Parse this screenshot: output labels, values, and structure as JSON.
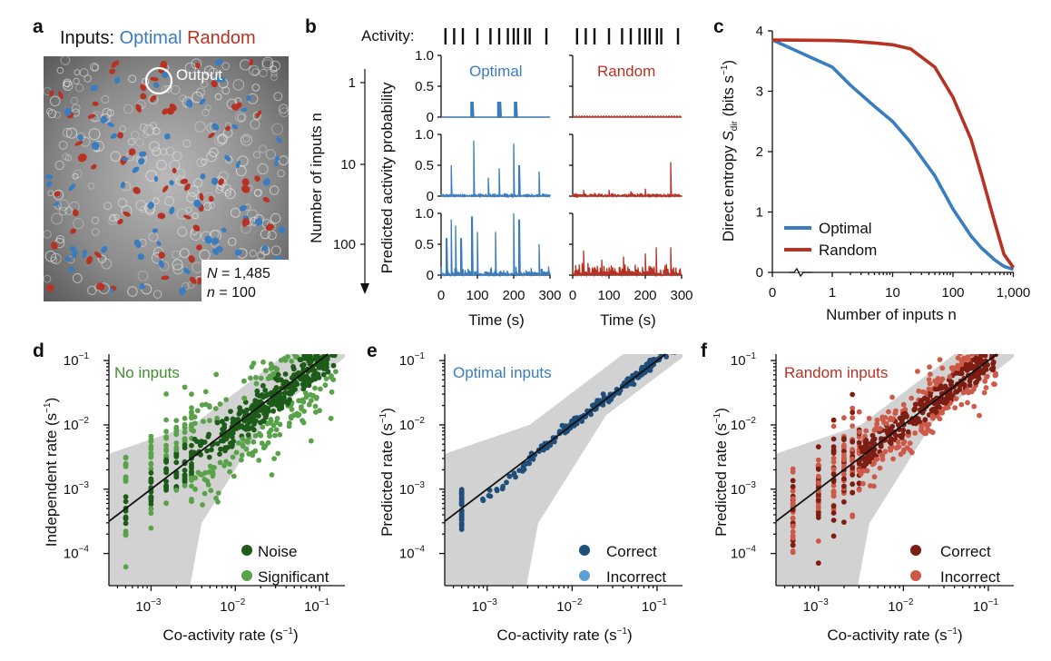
{
  "colors": {
    "optimal": "#3a7cc0",
    "random": "#b83224",
    "optimal_dark": "#235d94",
    "random_dark": "#8e2a1c",
    "noise": "#1d5c18",
    "significant": "#5aa24a",
    "correct_e": "#1f4e7a",
    "incorrect_e": "#5b9fd5",
    "correct_f": "#7e1d12",
    "incorrect_f": "#cd5a48",
    "shade": "#d2d2d2"
  },
  "panel_a": {
    "label": "a",
    "title_prefix": "Inputs:",
    "title_optimal": "Optimal",
    "title_random": "Random",
    "output_label": "Output",
    "N_label": "N",
    "N_value": " = 1,485",
    "n_label": "n",
    "n_value": " = 100"
  },
  "panel_b": {
    "label": "b",
    "activity_label": "Activity:",
    "optimal_title": "Optimal",
    "random_title": "Random",
    "ylabel": "Predicted activity probability",
    "left_ylabel": "Number of inputs n",
    "left_ticks": [
      "1",
      "10",
      "100"
    ],
    "prob_ticks": [
      "0",
      "0.5",
      "1.0"
    ],
    "time_ticks": [
      "0",
      "100",
      "200",
      "300"
    ],
    "xlabel": "Time (s)",
    "spike_times": [
      12,
      36,
      60,
      100,
      136,
      160,
      184,
      200,
      212,
      232,
      244,
      290
    ]
  },
  "panel_c": {
    "label": "c",
    "ylabel_prefix": "Direct entropy ",
    "ylabel_var": "S",
    "ylabel_sub": "dir",
    "ylabel_unit": " (bits s",
    "ylabel_exp": "−1",
    "ylabel_close": ")",
    "xlabel": "Number of inputs n",
    "x_ticks": [
      "0",
      "1",
      "10",
      "100",
      "1,000"
    ],
    "y_ticks": [
      "0",
      "1",
      "2",
      "3",
      "4"
    ],
    "legend": [
      "Optimal",
      "Random"
    ]
  },
  "panel_d": {
    "label": "d",
    "title": "No inputs",
    "ylabel": "Independent rate (s",
    "xlabel": "Co-activity rate (s",
    "legend": [
      "Noise",
      "Significant"
    ]
  },
  "panel_e": {
    "label": "e",
    "title": "Optimal inputs",
    "ylabel": "Predicted rate (s",
    "xlabel": "Co-activity rate (s",
    "legend": [
      "Correct",
      "Incorrect"
    ]
  },
  "panel_f": {
    "label": "f",
    "title": "Random inputs",
    "ylabel": "Predicted rate (s",
    "xlabel": "Co-activity rate (s",
    "legend": [
      "Correct",
      "Incorrect"
    ]
  },
  "log_ticks": {
    "x": [
      "10",
      "10",
      "10"
    ],
    "x_exp": [
      "−3",
      "−2",
      "−1"
    ],
    "y": [
      "10",
      "10",
      "10",
      "10"
    ],
    "y_exp": [
      "−1",
      "−2",
      "−3",
      "−4"
    ],
    "unit_close": ")",
    "unit_exp": "−1"
  },
  "chart_data": [
    {
      "type": "line",
      "panel": "c",
      "xscale": "symlog",
      "x": [
        0,
        1,
        2,
        5,
        10,
        20,
        50,
        100,
        200,
        300,
        500,
        700,
        1000
      ],
      "series": [
        {
          "name": "Optimal",
          "values": [
            3.85,
            3.4,
            3.1,
            2.75,
            2.5,
            2.15,
            1.6,
            1.05,
            0.6,
            0.4,
            0.2,
            0.1,
            0.05
          ]
        },
        {
          "name": "Random",
          "values": [
            3.85,
            3.84,
            3.83,
            3.8,
            3.77,
            3.7,
            3.4,
            2.9,
            2.2,
            1.6,
            0.8,
            0.3,
            0.08
          ]
        }
      ],
      "xlabel": "Number of inputs n",
      "ylim": [
        0,
        4
      ]
    },
    {
      "type": "bar",
      "panel": "b",
      "description_rows": [
        "1",
        "10",
        "100"
      ],
      "x": [
        0,
        300
      ],
      "ylim": [
        0,
        1
      ],
      "series": [
        {
          "name": "Optimal",
          "row": "1",
          "peaks": [
            [
              85,
              0.25
            ],
            [
              160,
              0.25
            ],
            [
              205,
              0.25
            ]
          ]
        },
        {
          "name": "Optimal",
          "row": "10",
          "peaks": [
            [
              28,
              0.5
            ],
            [
              90,
              0.9
            ],
            [
              130,
              0.3
            ],
            [
              160,
              0.45
            ],
            [
              200,
              0.85
            ],
            [
              215,
              0.5
            ],
            [
              270,
              0.4
            ]
          ]
        },
        {
          "name": "Optimal",
          "row": "100",
          "peaks": [
            [
              15,
              0.6
            ],
            [
              28,
              0.9
            ],
            [
              40,
              0.8
            ],
            [
              55,
              0.6
            ],
            [
              85,
              0.95
            ],
            [
              100,
              0.7
            ],
            [
              150,
              0.7
            ],
            [
              200,
              1.0
            ],
            [
              215,
              0.9
            ],
            [
              270,
              0.5
            ]
          ]
        },
        {
          "name": "Random",
          "row": "1",
          "peaks": []
        },
        {
          "name": "Random",
          "row": "10",
          "peaks": [
            [
              30,
              0.1
            ],
            [
              100,
              0.1
            ],
            [
              160,
              0.08
            ],
            [
              200,
              0.12
            ],
            [
              270,
              0.55
            ]
          ]
        },
        {
          "name": "Random",
          "row": "100",
          "peaks": [
            [
              30,
              0.4
            ],
            [
              80,
              0.25
            ],
            [
              140,
              0.3
            ],
            [
              200,
              0.35
            ],
            [
              230,
              0.45
            ],
            [
              270,
              0.45
            ]
          ]
        }
      ]
    }
  ]
}
